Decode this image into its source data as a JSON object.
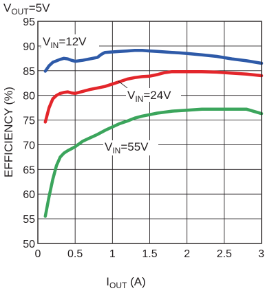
{
  "chart_data": {
    "type": "line",
    "title": {
      "main": "V",
      "sub": "OUT",
      "tail": "=5V"
    },
    "xlabel": {
      "main": "I",
      "sub": "OUT",
      "tail": " (A)"
    },
    "ylabel": "EFFICIENCY (%)",
    "xlim": [
      0,
      3
    ],
    "ylim": [
      50,
      95
    ],
    "xticks": [
      "0",
      "0.5",
      "1",
      "1.5",
      "2",
      "2.5",
      "3"
    ],
    "yticks": [
      "50",
      "55",
      "60",
      "65",
      "70",
      "75",
      "80",
      "85",
      "90",
      "95"
    ],
    "grid": true,
    "series": [
      {
        "label": {
          "main": "V",
          "sub": "IN",
          "tail": "=12V"
        },
        "color": "#2e5aa8",
        "x": [
          0.1,
          0.15,
          0.2,
          0.25,
          0.3,
          0.35,
          0.4,
          0.45,
          0.5,
          0.6,
          0.7,
          0.8,
          0.85,
          0.9,
          1.0,
          1.1,
          1.2,
          1.3,
          1.4,
          1.5,
          1.6,
          1.7,
          1.8,
          1.9,
          2.0,
          2.2,
          2.4,
          2.6,
          2.8,
          3.0
        ],
        "y": [
          84.9,
          86.0,
          86.7,
          87.0,
          87.3,
          87.5,
          87.4,
          87.1,
          86.9,
          87.1,
          87.4,
          87.7,
          88.3,
          88.7,
          88.8,
          88.9,
          89.0,
          89.1,
          89.1,
          89.0,
          88.9,
          88.8,
          88.7,
          88.6,
          88.5,
          88.2,
          87.9,
          87.4,
          87.0,
          86.5
        ]
      },
      {
        "label": {
          "main": "V",
          "sub": "IN",
          "tail": "=24V"
        },
        "color": "#e3262b",
        "x": [
          0.1,
          0.15,
          0.2,
          0.25,
          0.3,
          0.35,
          0.4,
          0.45,
          0.5,
          0.6,
          0.7,
          0.8,
          0.9,
          1.0,
          1.1,
          1.2,
          1.3,
          1.4,
          1.5,
          1.6,
          1.7,
          1.8,
          1.9,
          2.0,
          2.2,
          2.4,
          2.6,
          2.8,
          3.0
        ],
        "y": [
          74.6,
          77.5,
          79.3,
          80.0,
          80.4,
          80.6,
          80.7,
          80.5,
          80.4,
          80.8,
          81.2,
          81.5,
          81.8,
          82.3,
          82.8,
          83.3,
          83.6,
          83.8,
          83.9,
          84.2,
          84.6,
          84.8,
          84.8,
          84.8,
          84.8,
          84.7,
          84.5,
          84.3,
          84.0
        ]
      },
      {
        "label": {
          "main": "V",
          "sub": "IN",
          "tail": "=55V"
        },
        "color": "#3ba55c",
        "x": [
          0.1,
          0.15,
          0.2,
          0.25,
          0.3,
          0.35,
          0.4,
          0.45,
          0.5,
          0.6,
          0.7,
          0.8,
          0.9,
          1.0,
          1.1,
          1.2,
          1.3,
          1.4,
          1.5,
          1.6,
          1.8,
          2.0,
          2.2,
          2.4,
          2.6,
          2.8,
          3.0
        ],
        "y": [
          55.5,
          59.5,
          63.0,
          65.8,
          67.5,
          68.3,
          68.8,
          69.2,
          69.6,
          70.7,
          71.4,
          72.1,
          72.9,
          73.6,
          74.3,
          74.8,
          75.4,
          75.8,
          76.1,
          76.4,
          76.8,
          77.0,
          77.2,
          77.2,
          77.2,
          77.2,
          76.3
        ]
      }
    ],
    "annotations": [
      {
        "series": 0,
        "text": {
          "main": "V",
          "sub": "IN",
          "tail": "=12V"
        }
      },
      {
        "series": 1,
        "text": {
          "main": "V",
          "sub": "IN",
          "tail": "=24V"
        }
      },
      {
        "series": 2,
        "text": {
          "main": "V",
          "sub": "IN",
          "tail": "=55V"
        }
      }
    ]
  }
}
